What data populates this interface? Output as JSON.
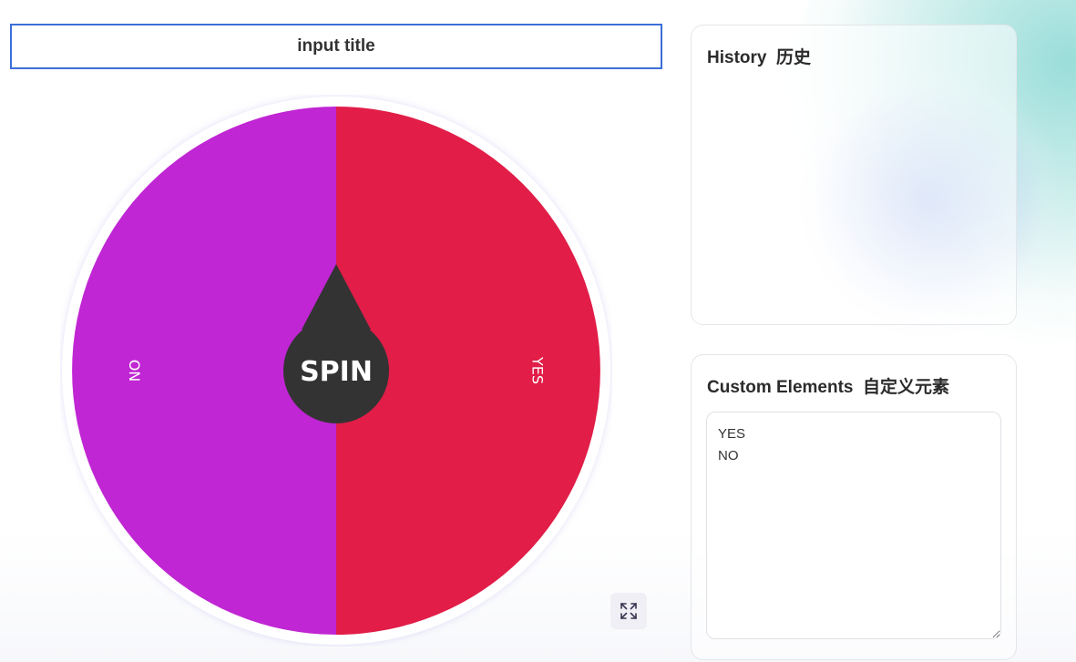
{
  "title_input": {
    "value": "input title"
  },
  "wheel": {
    "segments": [
      {
        "label": "YES",
        "color": "#e11d48"
      },
      {
        "label": "NO",
        "color": "#c026d3"
      }
    ],
    "spin_label": "SPIN",
    "pointer_color": "#333333",
    "rim_color": "#ffffff"
  },
  "history": {
    "title": "History  历史",
    "items": []
  },
  "custom_elements": {
    "title": "Custom Elements  自定义元素",
    "value": "YES\nNO"
  },
  "icons": {
    "fullscreen": "expand-icon"
  }
}
